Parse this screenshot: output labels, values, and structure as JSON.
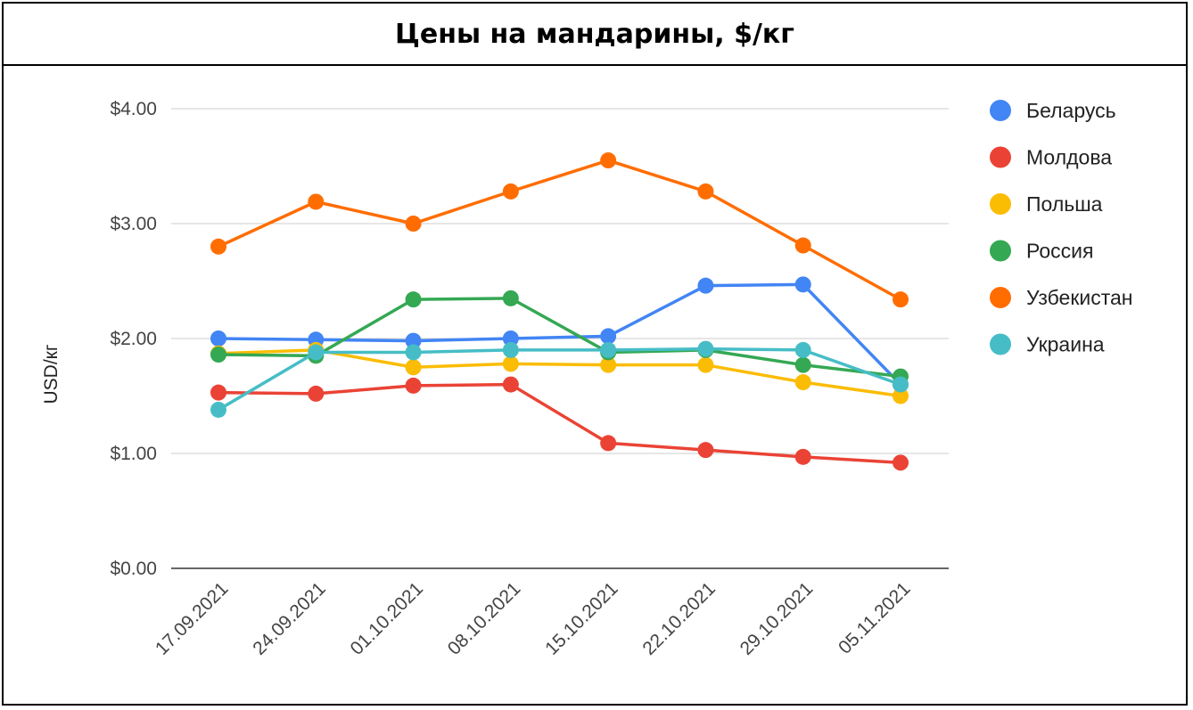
{
  "chart_data": {
    "type": "line",
    "title": "Цены на мандарины, $/кг",
    "ylabel": "USD/кг",
    "xlabel": "",
    "ylim": [
      0,
      4
    ],
    "yticks": [
      0,
      1,
      2,
      3,
      4
    ],
    "ytick_labels": [
      "$0.00",
      "$1.00",
      "$2.00",
      "$3.00",
      "$4.00"
    ],
    "grid": true,
    "legend_position": "right",
    "categories": [
      "17.09.2021",
      "24.09.2021",
      "01.10.2021",
      "08.10.2021",
      "15.10.2021",
      "22.10.2021",
      "29.10.2021",
      "05.11.2021"
    ],
    "series": [
      {
        "name": "Беларусь",
        "color": "#4285f4",
        "values": [
          2.0,
          1.99,
          1.98,
          2.0,
          2.02,
          2.46,
          2.47,
          1.6
        ]
      },
      {
        "name": "Молдова",
        "color": "#ea4335",
        "values": [
          1.53,
          1.52,
          1.59,
          1.6,
          1.09,
          1.03,
          0.97,
          0.92
        ]
      },
      {
        "name": "Польша",
        "color": "#fbbc04",
        "values": [
          1.87,
          1.9,
          1.75,
          1.78,
          1.77,
          1.77,
          1.62,
          1.5
        ]
      },
      {
        "name": "Россия",
        "color": "#34a853",
        "values": [
          1.86,
          1.85,
          2.34,
          2.35,
          1.88,
          1.9,
          1.77,
          1.67
        ]
      },
      {
        "name": "Узбекистан",
        "color": "#ff6d01",
        "values": [
          2.8,
          3.19,
          3.0,
          3.28,
          3.55,
          3.28,
          2.81,
          2.34
        ]
      },
      {
        "name": "Украина",
        "color": "#46bdc6",
        "values": [
          1.38,
          1.88,
          1.88,
          1.9,
          1.9,
          1.91,
          1.9,
          1.6
        ]
      }
    ]
  }
}
